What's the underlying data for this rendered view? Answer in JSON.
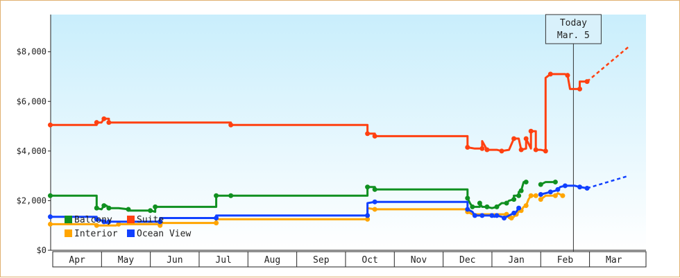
{
  "chart_data": {
    "type": "line",
    "title": "",
    "xlabel": "",
    "ylabel": "",
    "ylim": [
      0,
      9500
    ],
    "y_ticks": [
      "$0",
      "$2,000",
      "$4,000",
      "$6,000",
      "$8,000"
    ],
    "y_tick_values": [
      0,
      2000,
      4000,
      6000,
      8000
    ],
    "x_months": [
      "Apr",
      "May",
      "Jun",
      "Jul",
      "Aug",
      "Sep",
      "Oct",
      "Nov",
      "Dec",
      "Jan",
      "Feb",
      "Mar"
    ],
    "grid": "none",
    "background": "gradient light-blue to white",
    "legend_placement": "bottom-left",
    "today_marker": {
      "line1": "Today",
      "line2": "Mar. 5",
      "x": 10.67
    },
    "series": [
      {
        "name": "Suite",
        "color": "#ff4010",
        "points": [
          [
            -0.05,
            5050
          ],
          [
            0.9,
            5050
          ],
          [
            0.9,
            5150
          ],
          [
            1.0,
            5150
          ],
          [
            1.05,
            5300
          ],
          [
            1.15,
            5300
          ],
          [
            1.15,
            5150
          ],
          [
            3.65,
            5150
          ],
          [
            3.65,
            5050
          ],
          [
            6.45,
            5050
          ],
          [
            6.45,
            4700
          ],
          [
            6.6,
            4700
          ],
          [
            6.6,
            4600
          ],
          [
            8.5,
            4600
          ],
          [
            8.5,
            4150
          ],
          [
            8.65,
            4100
          ],
          [
            8.8,
            4100
          ],
          [
            8.8,
            4400
          ],
          [
            8.9,
            4050
          ],
          [
            9.1,
            4050
          ],
          [
            9.2,
            4000
          ],
          [
            9.35,
            4050
          ],
          [
            9.45,
            4500
          ],
          [
            9.55,
            4500
          ],
          [
            9.6,
            4050
          ],
          [
            9.7,
            4100
          ],
          [
            9.7,
            4500
          ],
          [
            9.8,
            4100
          ],
          [
            9.8,
            4800
          ],
          [
            9.9,
            4800
          ],
          [
            9.9,
            4050
          ],
          [
            10.0,
            4050
          ],
          [
            10.1,
            4000
          ],
          [
            10.1,
            6950
          ],
          [
            10.2,
            7100
          ],
          [
            10.5,
            7100
          ],
          [
            10.55,
            7050
          ],
          [
            10.6,
            6500
          ],
          [
            10.8,
            6500
          ],
          [
            10.8,
            6800
          ],
          [
            10.95,
            6800
          ]
        ],
        "forecast": [
          [
            10.95,
            6800
          ],
          [
            11.8,
            8200
          ]
        ]
      },
      {
        "name": "Balcony",
        "color": "#109020",
        "points": [
          [
            -0.05,
            2200
          ],
          [
            0.9,
            2200
          ],
          [
            0.9,
            1700
          ],
          [
            1.0,
            1650
          ],
          [
            1.05,
            1800
          ],
          [
            1.1,
            1800
          ],
          [
            1.15,
            1700
          ],
          [
            1.35,
            1700
          ],
          [
            1.55,
            1650
          ],
          [
            1.55,
            1600
          ],
          [
            2.0,
            1600
          ],
          [
            2.1,
            1550
          ],
          [
            2.1,
            1750
          ],
          [
            3.35,
            1750
          ],
          [
            3.35,
            2200
          ],
          [
            3.65,
            2200
          ],
          [
            3.65,
            2200
          ],
          [
            6.45,
            2200
          ],
          [
            6.45,
            2550
          ],
          [
            6.6,
            2550
          ],
          [
            6.6,
            2450
          ],
          [
            8.5,
            2450
          ],
          [
            8.5,
            2100
          ],
          [
            8.55,
            1900
          ],
          [
            8.6,
            1750
          ],
          [
            8.75,
            1750
          ],
          [
            8.75,
            1900
          ],
          [
            8.8,
            1750
          ],
          [
            8.9,
            1750
          ],
          [
            9.0,
            1700
          ],
          [
            9.1,
            1750
          ],
          [
            9.2,
            1900
          ],
          [
            9.3,
            1900
          ],
          [
            9.35,
            2000
          ],
          [
            9.45,
            2050
          ],
          [
            9.45,
            2200
          ],
          [
            9.55,
            2200
          ],
          [
            9.55,
            2350
          ],
          [
            9.6,
            2400
          ],
          [
            9.65,
            2750
          ],
          [
            9.7,
            2750
          ]
        ],
        "points_b": [
          [
            10.0,
            2650
          ],
          [
            10.1,
            2750
          ],
          [
            10.3,
            2750
          ]
        ],
        "forecast": []
      },
      {
        "name": "Interior",
        "color": "#ffa500",
        "points": [
          [
            -0.05,
            1050
          ],
          [
            0.9,
            1050
          ],
          [
            0.9,
            1000
          ],
          [
            1.3,
            1000
          ],
          [
            1.35,
            1050
          ],
          [
            2.2,
            1050
          ],
          [
            2.2,
            1000
          ],
          [
            2.25,
            1100
          ],
          [
            3.35,
            1100
          ],
          [
            3.35,
            1250
          ],
          [
            6.45,
            1250
          ],
          [
            6.45,
            1700
          ],
          [
            6.6,
            1650
          ],
          [
            8.5,
            1650
          ],
          [
            8.5,
            1550
          ],
          [
            8.6,
            1450
          ],
          [
            9.3,
            1450
          ],
          [
            9.35,
            1300
          ],
          [
            9.4,
            1300
          ],
          [
            9.45,
            1350
          ],
          [
            9.5,
            1450
          ],
          [
            9.55,
            1550
          ],
          [
            9.6,
            1600
          ],
          [
            9.65,
            1750
          ],
          [
            9.7,
            1800
          ],
          [
            9.75,
            2050
          ],
          [
            9.8,
            2200
          ],
          [
            9.9,
            2200
          ]
        ],
        "points_b": [
          [
            10.0,
            2050
          ],
          [
            10.1,
            2200
          ],
          [
            10.3,
            2200
          ],
          [
            10.35,
            2300
          ],
          [
            10.45,
            2200
          ]
        ],
        "forecast": []
      },
      {
        "name": "Ocean View",
        "color": "#1040ff",
        "points": [
          [
            -0.05,
            1350
          ],
          [
            0.9,
            1350
          ],
          [
            0.9,
            1250
          ],
          [
            1.0,
            1200
          ],
          [
            1.05,
            1150
          ],
          [
            1.1,
            1100
          ],
          [
            1.15,
            1150
          ],
          [
            1.35,
            1150
          ],
          [
            2.2,
            1150
          ],
          [
            2.2,
            1300
          ],
          [
            3.35,
            1300
          ],
          [
            3.35,
            1400
          ],
          [
            6.45,
            1400
          ],
          [
            6.45,
            1900
          ],
          [
            6.6,
            1950
          ],
          [
            8.5,
            1950
          ],
          [
            8.5,
            1650
          ],
          [
            8.6,
            1550
          ],
          [
            8.65,
            1400
          ],
          [
            8.75,
            1400
          ],
          [
            8.8,
            1400
          ],
          [
            8.9,
            1400
          ],
          [
            9.0,
            1400
          ],
          [
            9.05,
            1350
          ],
          [
            9.1,
            1400
          ],
          [
            9.2,
            1350
          ],
          [
            9.25,
            1300
          ],
          [
            9.35,
            1400
          ],
          [
            9.45,
            1500
          ],
          [
            9.5,
            1550
          ],
          [
            9.55,
            1700
          ]
        ],
        "points_b": [
          [
            10.0,
            2250
          ],
          [
            10.1,
            2300
          ],
          [
            10.2,
            2350
          ],
          [
            10.3,
            2400
          ],
          [
            10.35,
            2450
          ],
          [
            10.4,
            2550
          ],
          [
            10.5,
            2600
          ],
          [
            10.7,
            2600
          ],
          [
            10.8,
            2550
          ],
          [
            10.95,
            2500
          ]
        ],
        "forecast": [
          [
            10.95,
            2500
          ],
          [
            11.8,
            3000
          ]
        ]
      }
    ]
  }
}
